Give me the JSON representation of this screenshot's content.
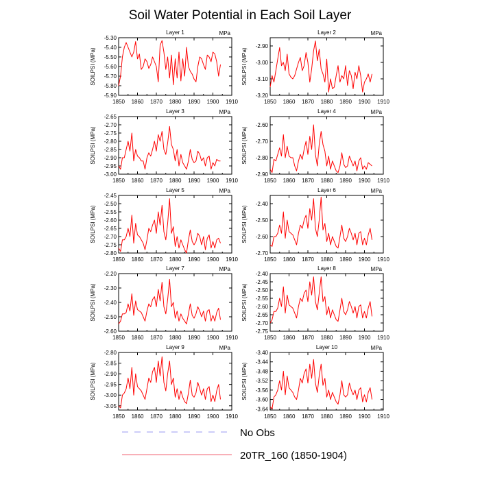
{
  "figure_title": "Soil Water Potential in Each Soil Layer",
  "legend": [
    {
      "label": "No Obs",
      "color": "#9a9af0",
      "dash": true
    },
    {
      "label": "20TR_160 (1850-1904)",
      "color": "#f06070",
      "dash": false
    }
  ],
  "colors": {
    "series": "#ff0000",
    "frame": "#000000"
  },
  "chart_data": [
    {
      "type": "line",
      "title": "Layer 1",
      "units": "MPa",
      "ylabel": "SOILPSI  (MPa)",
      "xlim": [
        1850,
        1910
      ],
      "xticks": [
        1850,
        1860,
        1870,
        1880,
        1890,
        1900,
        1910
      ],
      "ylim": [
        -5.9,
        -5.3
      ],
      "yticks": [
        -5.9,
        -5.8,
        -5.7,
        -5.6,
        -5.5,
        -5.4,
        -5.3
      ],
      "ydigits": 2,
      "series": [
        {
          "name": "20TR_160 (1850-1904)",
          "x_start": 1850,
          "values": [
            -5.8,
            -5.7,
            -5.5,
            -5.4,
            -5.35,
            -5.4,
            -5.45,
            -5.5,
            -5.45,
            -5.34,
            -5.52,
            -5.47,
            -5.63,
            -5.6,
            -5.52,
            -5.55,
            -5.62,
            -5.58,
            -5.5,
            -5.55,
            -5.6,
            -5.76,
            -5.38,
            -5.33,
            -5.45,
            -5.63,
            -5.5,
            -5.72,
            -5.48,
            -5.79,
            -5.52,
            -5.72,
            -5.45,
            -5.75,
            -5.52,
            -5.7,
            -5.4,
            -5.6,
            -5.65,
            -5.68,
            -5.73,
            -5.76,
            -5.6,
            -5.5,
            -5.52,
            -5.58,
            -5.63,
            -5.48,
            -5.5,
            -5.55,
            -5.45,
            -5.47,
            -5.55,
            -5.7,
            -5.58
          ]
        }
      ]
    },
    {
      "type": "line",
      "title": "Layer 2",
      "units": "MPa",
      "ylabel": "SOILPSI  (MPa)",
      "xlim": [
        1850,
        1910
      ],
      "xticks": [
        1850,
        1860,
        1870,
        1880,
        1890,
        1900,
        1910
      ],
      "ylim": [
        -3.2,
        -2.85
      ],
      "yticks": [
        -3.2,
        -3.1,
        -3.0,
        -2.9
      ],
      "ydigits": 2,
      "series": [
        {
          "name": "20TR_160 (1850-1904)",
          "x_start": 1850,
          "values": [
            -3.15,
            -3.08,
            -3.12,
            -3.05,
            -2.98,
            -2.91,
            -3.02,
            -3.0,
            -3.05,
            -2.95,
            -3.07,
            -3.09,
            -3.1,
            -3.08,
            -3.04,
            -3.0,
            -2.97,
            -3.05,
            -3.02,
            -2.94,
            -3.0,
            -3.12,
            -3.04,
            -2.93,
            -2.87,
            -2.99,
            -2.92,
            -3.04,
            -3.07,
            -3.12,
            -2.98,
            -3.18,
            -3.1,
            -3.16,
            -3.15,
            -3.08,
            -3.02,
            -3.12,
            -3.08,
            -3.1,
            -3.02,
            -3.14,
            -3.05,
            -3.08,
            -3.16,
            -3.06,
            -3.1,
            -3.02,
            -3.08,
            -3.18,
            -3.12,
            -3.1,
            -3.07,
            -3.12,
            -3.07
          ]
        }
      ]
    },
    {
      "type": "line",
      "title": "Layer 3",
      "units": "MPa",
      "ylabel": "SOILPSI  (MPa)",
      "xlim": [
        1850,
        1910
      ],
      "xticks": [
        1850,
        1860,
        1870,
        1880,
        1890,
        1900,
        1910
      ],
      "ylim": [
        -3.0,
        -2.65
      ],
      "yticks": [
        -3.0,
        -2.95,
        -2.9,
        -2.85,
        -2.8,
        -2.75,
        -2.7,
        -2.65
      ],
      "ydigits": 2,
      "series": [
        {
          "name": "20TR_160 (1850-1904)",
          "x_start": 1850,
          "values": [
            -2.95,
            -2.97,
            -2.9,
            -2.9,
            -2.85,
            -2.8,
            -2.86,
            -2.75,
            -2.92,
            -2.85,
            -2.89,
            -2.9,
            -2.92,
            -2.92,
            -2.97,
            -2.9,
            -2.87,
            -2.89,
            -2.85,
            -2.8,
            -2.86,
            -2.76,
            -2.8,
            -2.74,
            -2.85,
            -2.88,
            -2.81,
            -2.71,
            -2.82,
            -2.85,
            -2.92,
            -2.85,
            -2.95,
            -2.88,
            -2.93,
            -2.95,
            -2.97,
            -2.92,
            -2.85,
            -2.91,
            -2.93,
            -2.92,
            -2.86,
            -2.88,
            -2.92,
            -2.9,
            -2.95,
            -2.9,
            -2.89,
            -2.97,
            -2.93,
            -2.95,
            -2.91,
            -2.92,
            -2.92
          ]
        }
      ]
    },
    {
      "type": "line",
      "title": "Layer 4",
      "units": "MPa",
      "ylabel": "SOILPSI  (MPa)",
      "xlim": [
        1850,
        1910
      ],
      "xticks": [
        1850,
        1860,
        1870,
        1880,
        1890,
        1900,
        1910
      ],
      "ylim": [
        -2.9,
        -2.55
      ],
      "yticks": [
        -2.9,
        -2.8,
        -2.7,
        -2.6
      ],
      "ydigits": 2,
      "series": [
        {
          "name": "20TR_160 (1850-1904)",
          "x_start": 1850,
          "values": [
            -2.87,
            -2.89,
            -2.81,
            -2.82,
            -2.78,
            -2.74,
            -2.79,
            -2.66,
            -2.8,
            -2.73,
            -2.79,
            -2.8,
            -2.8,
            -2.85,
            -2.88,
            -2.82,
            -2.78,
            -2.81,
            -2.75,
            -2.7,
            -2.78,
            -2.67,
            -2.75,
            -2.6,
            -2.78,
            -2.85,
            -2.72,
            -2.64,
            -2.72,
            -2.76,
            -2.85,
            -2.79,
            -2.87,
            -2.82,
            -2.85,
            -2.88,
            -2.89,
            -2.85,
            -2.77,
            -2.84,
            -2.86,
            -2.85,
            -2.79,
            -2.82,
            -2.85,
            -2.82,
            -2.88,
            -2.82,
            -2.8,
            -2.87,
            -2.85,
            -2.87,
            -2.83,
            -2.84,
            -2.85
          ]
        }
      ]
    },
    {
      "type": "line",
      "title": "Layer 5",
      "units": "MPa",
      "ylabel": "SOILPSI  (MPa)",
      "xlim": [
        1850,
        1910
      ],
      "xticks": [
        1850,
        1860,
        1870,
        1880,
        1890,
        1900,
        1910
      ],
      "ylim": [
        -2.8,
        -2.45
      ],
      "yticks": [
        -2.8,
        -2.75,
        -2.7,
        -2.65,
        -2.6,
        -2.55,
        -2.5,
        -2.45
      ],
      "ydigits": 2,
      "series": [
        {
          "name": "20TR_160 (1850-1904)",
          "x_start": 1850,
          "values": [
            -2.77,
            -2.79,
            -2.72,
            -2.72,
            -2.7,
            -2.65,
            -2.7,
            -2.57,
            -2.74,
            -2.62,
            -2.69,
            -2.7,
            -2.72,
            -2.74,
            -2.78,
            -2.72,
            -2.65,
            -2.67,
            -2.63,
            -2.6,
            -2.68,
            -2.55,
            -2.63,
            -2.51,
            -2.67,
            -2.72,
            -2.62,
            -2.47,
            -2.68,
            -2.64,
            -2.76,
            -2.7,
            -2.77,
            -2.72,
            -2.75,
            -2.78,
            -2.8,
            -2.72,
            -2.66,
            -2.73,
            -2.75,
            -2.73,
            -2.68,
            -2.7,
            -2.75,
            -2.7,
            -2.78,
            -2.71,
            -2.69,
            -2.77,
            -2.73,
            -2.77,
            -2.72,
            -2.71,
            -2.74
          ]
        }
      ]
    },
    {
      "type": "line",
      "title": "Layer 6",
      "units": "MPa",
      "ylabel": "SOILPSI  (MPa)",
      "xlim": [
        1850,
        1910
      ],
      "xticks": [
        1850,
        1860,
        1870,
        1880,
        1890,
        1900,
        1910
      ],
      "ylim": [
        -2.7,
        -2.35
      ],
      "yticks": [
        -2.7,
        -2.6,
        -2.5,
        -2.4
      ],
      "ydigits": 2,
      "series": [
        {
          "name": "20TR_160 (1850-1904)",
          "x_start": 1850,
          "values": [
            -2.65,
            -2.66,
            -2.6,
            -2.6,
            -2.58,
            -2.53,
            -2.58,
            -2.45,
            -2.61,
            -2.5,
            -2.57,
            -2.58,
            -2.59,
            -2.62,
            -2.65,
            -2.58,
            -2.53,
            -2.55,
            -2.5,
            -2.47,
            -2.55,
            -2.43,
            -2.5,
            -2.37,
            -2.55,
            -2.6,
            -2.5,
            -2.36,
            -2.56,
            -2.52,
            -2.63,
            -2.58,
            -2.65,
            -2.6,
            -2.63,
            -2.66,
            -2.67,
            -2.6,
            -2.53,
            -2.61,
            -2.63,
            -2.6,
            -2.55,
            -2.58,
            -2.62,
            -2.58,
            -2.65,
            -2.58,
            -2.57,
            -2.65,
            -2.61,
            -2.65,
            -2.59,
            -2.55,
            -2.62
          ]
        }
      ]
    },
    {
      "type": "line",
      "title": "Layer 7",
      "units": "MPa",
      "ylabel": "SOILPSI  (MPa)",
      "xlim": [
        1850,
        1910
      ],
      "xticks": [
        1850,
        1860,
        1870,
        1880,
        1890,
        1900,
        1910
      ],
      "ylim": [
        -2.6,
        -2.2
      ],
      "yticks": [
        -2.6,
        -2.5,
        -2.4,
        -2.3,
        -2.2
      ],
      "ydigits": 2,
      "series": [
        {
          "name": "20TR_160 (1850-1904)",
          "x_start": 1850,
          "values": [
            -2.55,
            -2.53,
            -2.48,
            -2.48,
            -2.47,
            -2.41,
            -2.46,
            -2.34,
            -2.49,
            -2.39,
            -2.45,
            -2.46,
            -2.47,
            -2.5,
            -2.53,
            -2.46,
            -2.41,
            -2.43,
            -2.38,
            -2.36,
            -2.43,
            -2.31,
            -2.39,
            -2.26,
            -2.43,
            -2.48,
            -2.38,
            -2.24,
            -2.43,
            -2.4,
            -2.51,
            -2.46,
            -2.53,
            -2.48,
            -2.51,
            -2.53,
            -2.55,
            -2.48,
            -2.41,
            -2.49,
            -2.51,
            -2.48,
            -2.43,
            -2.46,
            -2.5,
            -2.46,
            -2.53,
            -2.46,
            -2.45,
            -2.53,
            -2.49,
            -2.53,
            -2.47,
            -2.44,
            -2.52
          ]
        }
      ]
    },
    {
      "type": "line",
      "title": "Layer 8",
      "units": "MPa",
      "ylabel": "SOILPSI  (MPa)",
      "xlim": [
        1850,
        1910
      ],
      "xticks": [
        1850,
        1860,
        1870,
        1880,
        1890,
        1900,
        1910
      ],
      "ylim": [
        -2.75,
        -2.4
      ],
      "yticks": [
        -2.75,
        -2.7,
        -2.65,
        -2.6,
        -2.55,
        -2.5,
        -2.45,
        -2.4
      ],
      "ydigits": 2,
      "series": [
        {
          "name": "20TR_160 (1850-1904)",
          "x_start": 1850,
          "values": [
            -2.7,
            -2.68,
            -2.63,
            -2.63,
            -2.61,
            -2.55,
            -2.6,
            -2.48,
            -2.64,
            -2.53,
            -2.59,
            -2.6,
            -2.61,
            -2.64,
            -2.67,
            -2.6,
            -2.55,
            -2.57,
            -2.52,
            -2.5,
            -2.57,
            -2.45,
            -2.53,
            -2.42,
            -2.57,
            -2.62,
            -2.52,
            -2.42,
            -2.57,
            -2.54,
            -2.65,
            -2.6,
            -2.67,
            -2.62,
            -2.65,
            -2.68,
            -2.69,
            -2.62,
            -2.55,
            -2.63,
            -2.65,
            -2.62,
            -2.57,
            -2.6,
            -2.64,
            -2.6,
            -2.67,
            -2.6,
            -2.59,
            -2.67,
            -2.63,
            -2.67,
            -2.61,
            -2.57,
            -2.66
          ]
        }
      ]
    },
    {
      "type": "line",
      "title": "Layer 9",
      "units": "MPa",
      "ylabel": "SOILPSI  (MPa)",
      "xlim": [
        1850,
        1910
      ],
      "xticks": [
        1850,
        1860,
        1870,
        1880,
        1890,
        1900,
        1910
      ],
      "ylim": [
        -3.07,
        -2.8
      ],
      "yticks": [
        -3.05,
        -3.0,
        -2.95,
        -2.9,
        -2.85,
        -2.8
      ],
      "ydigits": 2,
      "series": [
        {
          "name": "20TR_160 (1850-1904)",
          "x_start": 1850,
          "values": [
            -3.05,
            -3.06,
            -3.0,
            -2.99,
            -2.97,
            -2.92,
            -2.97,
            -2.87,
            -3.0,
            -2.9,
            -2.96,
            -2.97,
            -2.98,
            -3.0,
            -3.02,
            -2.97,
            -2.92,
            -2.94,
            -2.89,
            -2.87,
            -2.94,
            -2.84,
            -2.91,
            -2.82,
            -2.94,
            -2.98,
            -2.9,
            -2.84,
            -2.95,
            -2.92,
            -3.01,
            -2.97,
            -3.02,
            -2.98,
            -3.01,
            -3.03,
            -3.04,
            -2.99,
            -2.93,
            -3.0,
            -3.01,
            -2.99,
            -2.94,
            -2.97,
            -3.0,
            -2.97,
            -3.02,
            -2.97,
            -2.96,
            -3.03,
            -3.0,
            -3.03,
            -2.98,
            -2.95,
            -3.02
          ]
        }
      ]
    },
    {
      "type": "line",
      "title": "Layer 10",
      "units": "MPa",
      "ylabel": "SOILPSI  (MPa)",
      "xlim": [
        1850,
        1910
      ],
      "xticks": [
        1850,
        1860,
        1870,
        1880,
        1890,
        1900,
        1910
      ],
      "ylim": [
        -3.645,
        -3.4
      ],
      "yticks": [
        -3.64,
        -3.6,
        -3.56,
        -3.52,
        -3.48,
        -3.44,
        -3.4
      ],
      "ydigits": 2,
      "series": [
        {
          "name": "20TR_160 (1850-1904)",
          "x_start": 1850,
          "values": [
            -3.63,
            -3.64,
            -3.59,
            -3.58,
            -3.56,
            -3.52,
            -3.56,
            -3.48,
            -3.58,
            -3.5,
            -3.55,
            -3.56,
            -3.57,
            -3.59,
            -3.6,
            -3.56,
            -3.51,
            -3.53,
            -3.49,
            -3.47,
            -3.53,
            -3.45,
            -3.51,
            -3.43,
            -3.53,
            -3.57,
            -3.5,
            -3.45,
            -3.54,
            -3.51,
            -3.59,
            -3.56,
            -3.6,
            -3.57,
            -3.59,
            -3.61,
            -3.62,
            -3.58,
            -3.52,
            -3.58,
            -3.59,
            -3.58,
            -3.53,
            -3.56,
            -3.58,
            -3.56,
            -3.6,
            -3.56,
            -3.55,
            -3.61,
            -3.58,
            -3.61,
            -3.57,
            -3.55,
            -3.6
          ]
        }
      ]
    }
  ]
}
